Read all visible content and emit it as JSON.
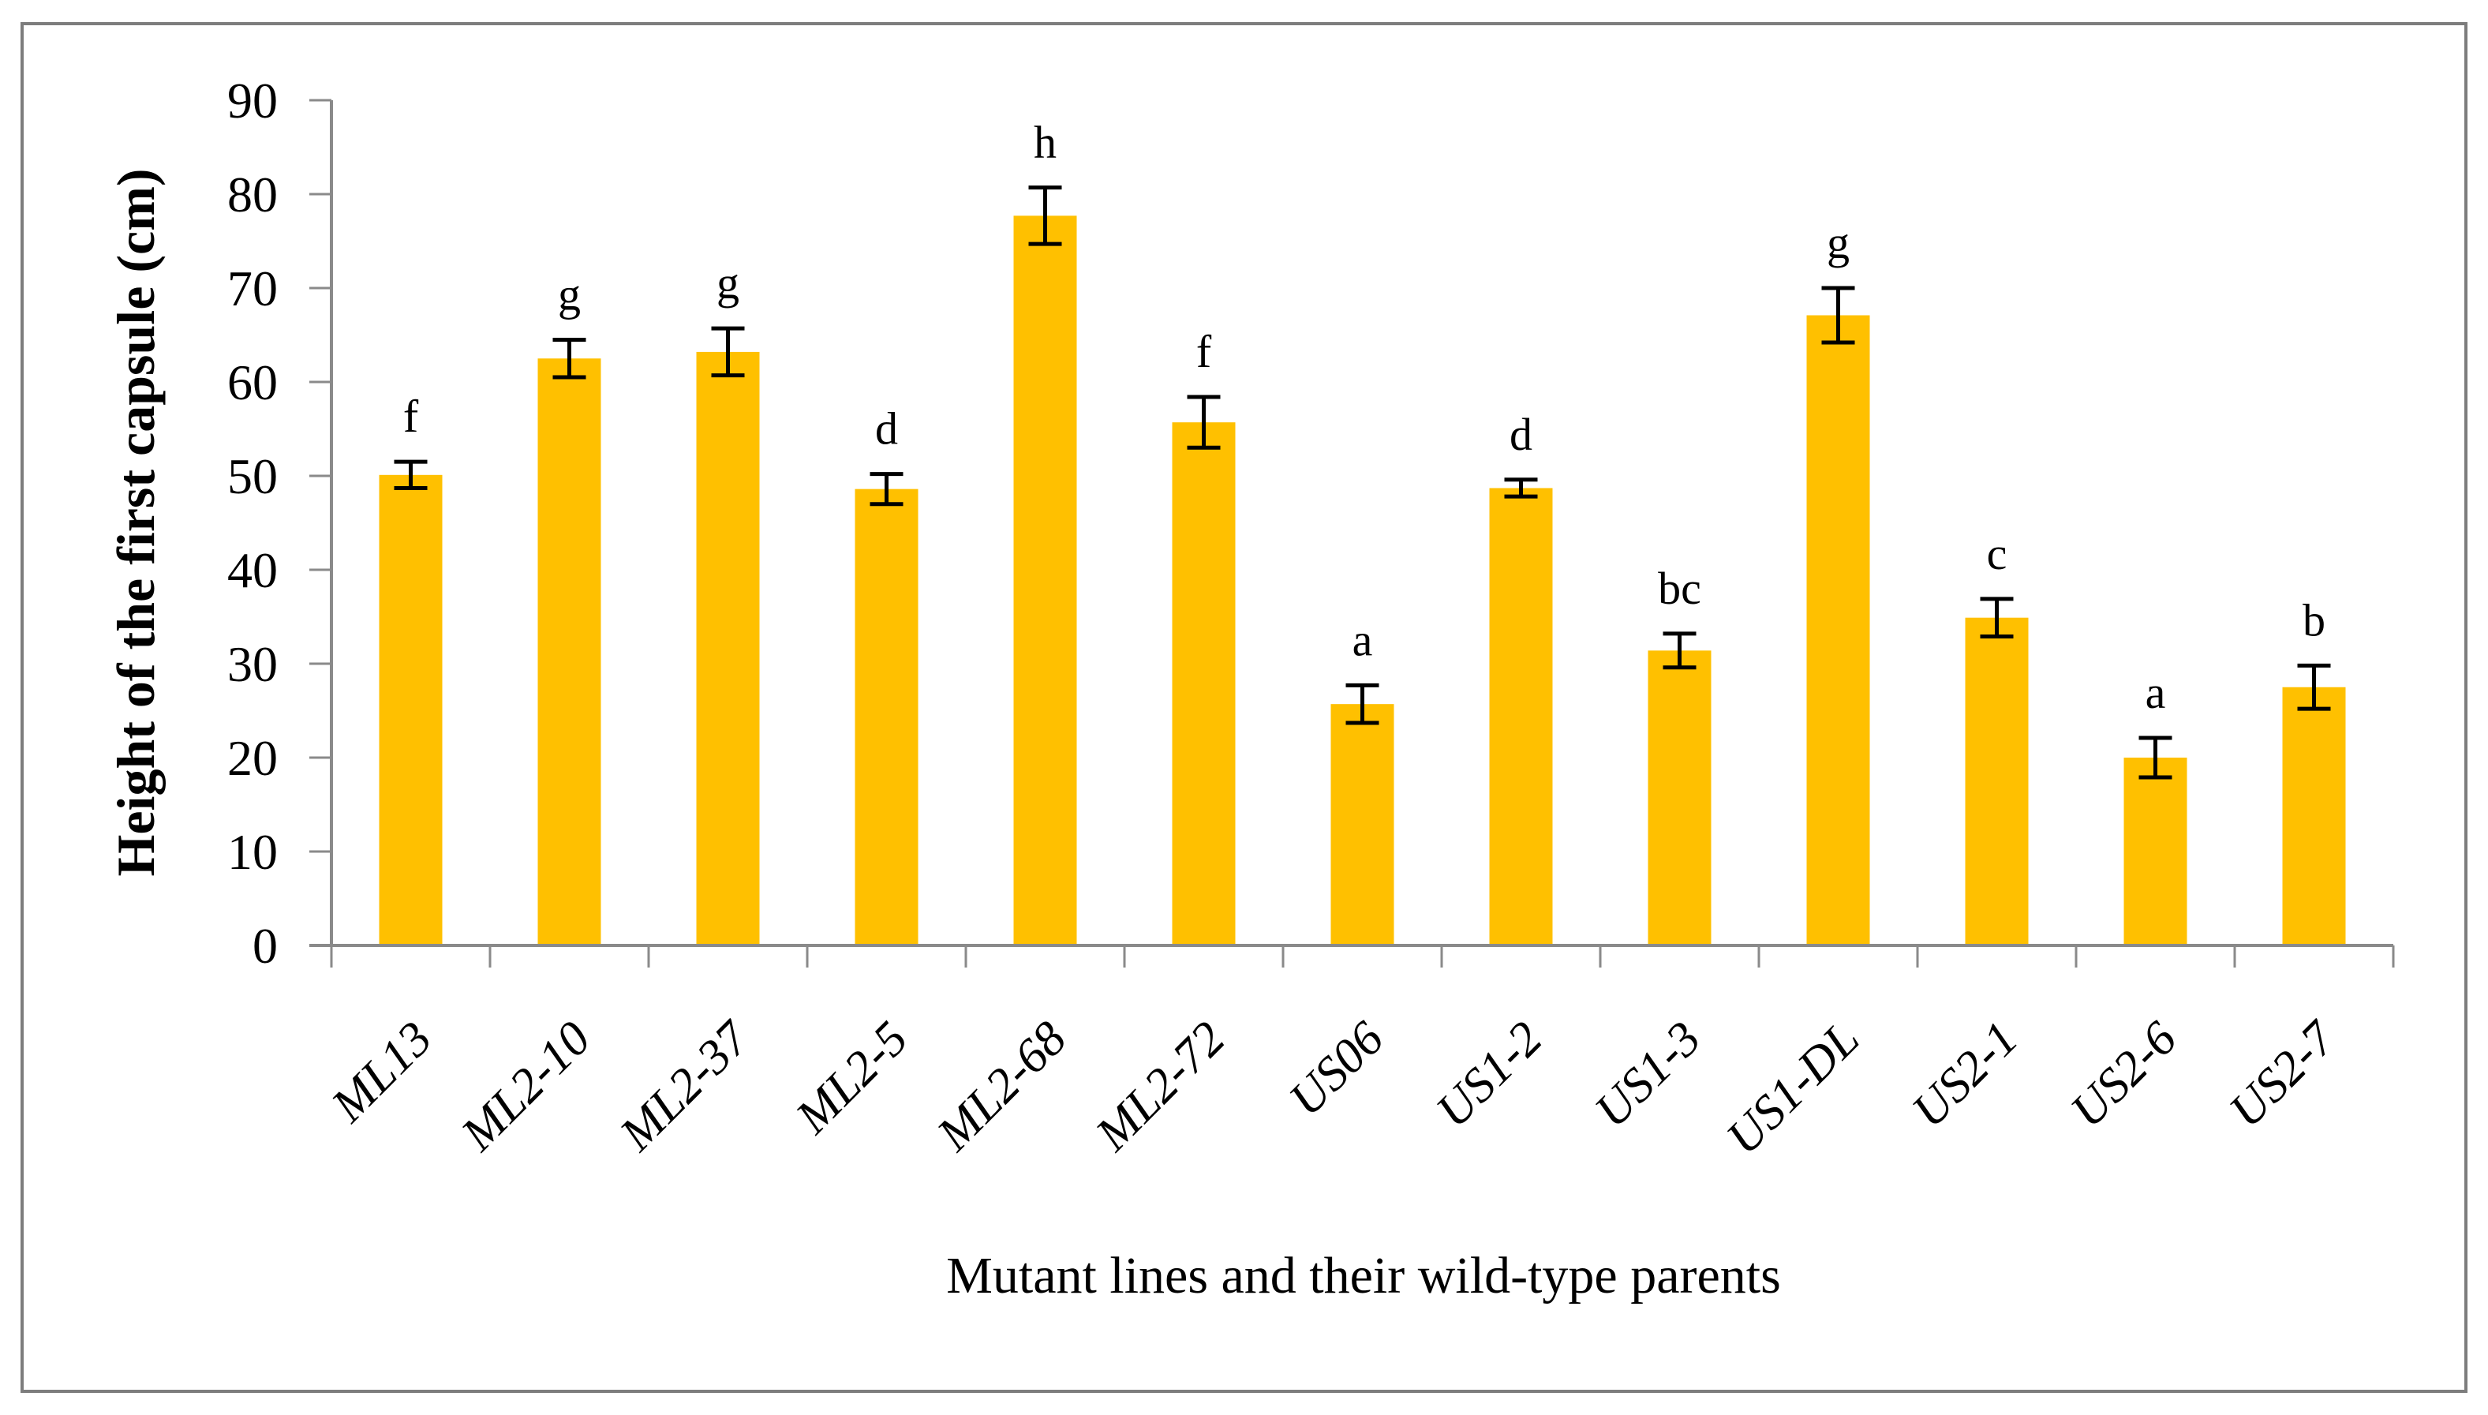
{
  "figure": {
    "background": "#ffffff",
    "border_color": "#7d7d7d"
  },
  "chart_data": {
    "type": "bar",
    "title": "",
    "xlabel": "Mutant lines and their wild-type parents",
    "ylabel": "Height of the first capsule (cm)",
    "categories": [
      "ML13",
      "ML2-10",
      "ML2-37",
      "ML2-5",
      "ML2-68",
      "ML2-72",
      "US06",
      "US1-2",
      "US1-3",
      "US1-DL",
      "US2-1",
      "US2-6",
      "US2-7"
    ],
    "series": [
      {
        "name": "Height of the first capsule (cm)",
        "values": [
          50.1,
          62.5,
          63.2,
          48.6,
          77.7,
          55.7,
          25.7,
          48.7,
          31.4,
          67.1,
          34.9,
          20.0,
          27.5
        ],
        "errors": [
          1.4,
          2.0,
          2.5,
          1.6,
          3.0,
          2.7,
          2.0,
          0.9,
          1.8,
          2.9,
          2.0,
          2.1,
          2.3
        ]
      }
    ],
    "significance_letters": [
      "f",
      "g",
      "g",
      "d",
      "h",
      "f",
      "a",
      "d",
      "bc",
      "g",
      "c",
      "a",
      "b"
    ],
    "yticks": [
      0,
      10,
      20,
      30,
      40,
      50,
      60,
      70,
      80,
      90
    ],
    "ylim": [
      0,
      90
    ],
    "grid": false,
    "legend_position": "none",
    "bar_color": "#FFC000",
    "error_bar_color": "#000000",
    "axis_color": "#8a8a8a",
    "text_color": "#000000"
  }
}
